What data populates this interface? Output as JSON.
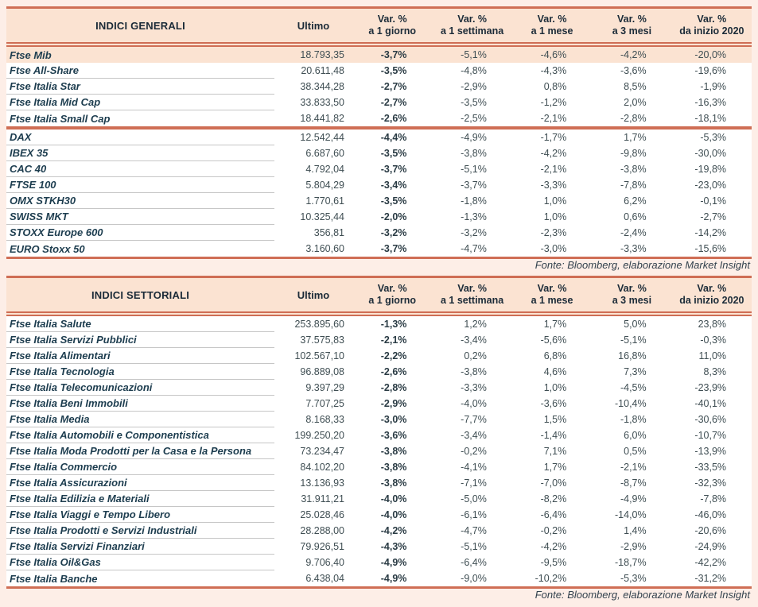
{
  "page": {
    "background": "#fdeee7",
    "accent_rule_color": "#cf6e55",
    "header_band_color": "#fbe3d2",
    "highlight_row_color": "#fbe3d2",
    "label_text_color": "#1d3d4f",
    "value_text_color": "#3f4e53"
  },
  "columns": {
    "ultimo": "Ultimo",
    "variation_top": "Var. %",
    "variation_subs": [
      "a 1 giorno",
      "a 1 settimana",
      "a 1 mese",
      "a 3 mesi",
      "da inizio 2020"
    ]
  },
  "tables": [
    {
      "id": "indici-generali",
      "title": "INDICI GENERALI",
      "fonte": "Fonte: Bloomberg, elaborazione Market Insight",
      "groups": [
        {
          "rows": [
            {
              "name": "Ftse Mib",
              "ultimo": "18.793,35",
              "values": [
                "-3,7%",
                "-5,1%",
                "-4,6%",
                "-4,2%",
                "-20,0%"
              ],
              "highlight": true
            },
            {
              "name": "Ftse All-Share",
              "ultimo": "20.611,48",
              "values": [
                "-3,5%",
                "-4,8%",
                "-4,3%",
                "-3,6%",
                "-19,6%"
              ]
            },
            {
              "name": "Ftse Italia Star",
              "ultimo": "38.344,28",
              "values": [
                "-2,7%",
                "-2,9%",
                "0,8%",
                "8,5%",
                "-1,9%"
              ]
            },
            {
              "name": "Ftse Italia Mid Cap",
              "ultimo": "33.833,50",
              "values": [
                "-2,7%",
                "-3,5%",
                "-1,2%",
                "2,0%",
                "-16,3%"
              ]
            },
            {
              "name": "Ftse Italia Small Cap",
              "ultimo": "18.441,82",
              "values": [
                "-2,6%",
                "-2,5%",
                "-2,1%",
                "-2,8%",
                "-18,1%"
              ]
            }
          ]
        },
        {
          "rows": [
            {
              "name": "DAX",
              "ultimo": "12.542,44",
              "values": [
                "-4,4%",
                "-4,9%",
                "-1,7%",
                "1,7%",
                "-5,3%"
              ]
            },
            {
              "name": "IBEX 35",
              "ultimo": "6.687,60",
              "values": [
                "-3,5%",
                "-3,8%",
                "-4,2%",
                "-9,8%",
                "-30,0%"
              ]
            },
            {
              "name": "CAC 40",
              "ultimo": "4.792,04",
              "values": [
                "-3,7%",
                "-5,1%",
                "-2,1%",
                "-3,8%",
                "-19,8%"
              ]
            },
            {
              "name": "FTSE 100",
              "ultimo": "5.804,29",
              "values": [
                "-3,4%",
                "-3,7%",
                "-3,3%",
                "-7,8%",
                "-23,0%"
              ]
            },
            {
              "name": "OMX STKH30",
              "ultimo": "1.770,61",
              "values": [
                "-3,5%",
                "-1,8%",
                "1,0%",
                "6,2%",
                "-0,1%"
              ]
            },
            {
              "name": "SWISS MKT",
              "ultimo": "10.325,44",
              "values": [
                "-2,0%",
                "-1,3%",
                "1,0%",
                "0,6%",
                "-2,7%"
              ]
            },
            {
              "name": "STOXX Europe 600",
              "ultimo": "356,81",
              "values": [
                "-3,2%",
                "-3,2%",
                "-2,3%",
                "-2,4%",
                "-14,2%"
              ]
            },
            {
              "name": "EURO Stoxx 50",
              "ultimo": "3.160,60",
              "values": [
                "-3,7%",
                "-4,7%",
                "-3,0%",
                "-3,3%",
                "-15,6%"
              ]
            }
          ]
        }
      ]
    },
    {
      "id": "indici-settoriali",
      "title": "INDICI SETTORIALI",
      "fonte": "Fonte: Bloomberg, elaborazione Market Insight",
      "groups": [
        {
          "rows": [
            {
              "name": "Ftse Italia Salute",
              "ultimo": "253.895,60",
              "values": [
                "-1,3%",
                "1,2%",
                "1,7%",
                "5,0%",
                "23,8%"
              ]
            },
            {
              "name": "Ftse Italia Servizi Pubblici",
              "ultimo": "37.575,83",
              "values": [
                "-2,1%",
                "-3,4%",
                "-5,6%",
                "-5,1%",
                "-0,3%"
              ]
            },
            {
              "name": "Ftse Italia Alimentari",
              "ultimo": "102.567,10",
              "values": [
                "-2,2%",
                "0,2%",
                "6,8%",
                "16,8%",
                "11,0%"
              ]
            },
            {
              "name": "Ftse Italia Tecnologia",
              "ultimo": "96.889,08",
              "values": [
                "-2,6%",
                "-3,8%",
                "4,6%",
                "7,3%",
                "8,3%"
              ]
            },
            {
              "name": "Ftse Italia Telecomunicazioni",
              "ultimo": "9.397,29",
              "values": [
                "-2,8%",
                "-3,3%",
                "1,0%",
                "-4,5%",
                "-23,9%"
              ]
            },
            {
              "name": "Ftse Italia Beni Immobili",
              "ultimo": "7.707,25",
              "values": [
                "-2,9%",
                "-4,0%",
                "-3,6%",
                "-10,4%",
                "-40,1%"
              ]
            },
            {
              "name": "Ftse Italia Media",
              "ultimo": "8.168,33",
              "values": [
                "-3,0%",
                "-7,7%",
                "1,5%",
                "-1,8%",
                "-30,6%"
              ]
            },
            {
              "name": "Ftse Italia Automobili e Componentistica",
              "ultimo": "199.250,20",
              "values": [
                "-3,6%",
                "-3,4%",
                "-1,4%",
                "6,0%",
                "-10,7%"
              ]
            },
            {
              "name": "Ftse Italia Moda Prodotti per la Casa e la Persona",
              "ultimo": "73.234,47",
              "values": [
                "-3,8%",
                "-0,2%",
                "7,1%",
                "0,5%",
                "-13,9%"
              ]
            },
            {
              "name": "Ftse Italia Commercio",
              "ultimo": "84.102,20",
              "values": [
                "-3,8%",
                "-4,1%",
                "1,7%",
                "-2,1%",
                "-33,5%"
              ]
            },
            {
              "name": "Ftse Italia Assicurazioni",
              "ultimo": "13.136,93",
              "values": [
                "-3,8%",
                "-7,1%",
                "-7,0%",
                "-8,7%",
                "-32,3%"
              ]
            },
            {
              "name": "Ftse Italia Edilizia e Materiali",
              "ultimo": "31.911,21",
              "values": [
                "-4,0%",
                "-5,0%",
                "-8,2%",
                "-4,9%",
                "-7,8%"
              ]
            },
            {
              "name": "Ftse Italia Viaggi e Tempo Libero",
              "ultimo": "25.028,46",
              "values": [
                "-4,0%",
                "-6,1%",
                "-6,4%",
                "-14,0%",
                "-46,0%"
              ]
            },
            {
              "name": "Ftse Italia Prodotti e Servizi Industriali",
              "ultimo": "28.288,00",
              "values": [
                "-4,2%",
                "-4,7%",
                "-0,2%",
                "1,4%",
                "-20,6%"
              ]
            },
            {
              "name": "Ftse Italia Servizi Finanziari",
              "ultimo": "79.926,51",
              "values": [
                "-4,3%",
                "-5,1%",
                "-4,2%",
                "-2,9%",
                "-24,9%"
              ]
            },
            {
              "name": "Ftse Italia Oil&Gas",
              "ultimo": "9.706,40",
              "values": [
                "-4,9%",
                "-6,4%",
                "-9,5%",
                "-18,7%",
                "-42,2%"
              ]
            },
            {
              "name": "Ftse Italia Banche",
              "ultimo": "6.438,04",
              "values": [
                "-4,9%",
                "-9,0%",
                "-10,2%",
                "-5,3%",
                "-31,2%"
              ]
            }
          ]
        }
      ]
    }
  ]
}
